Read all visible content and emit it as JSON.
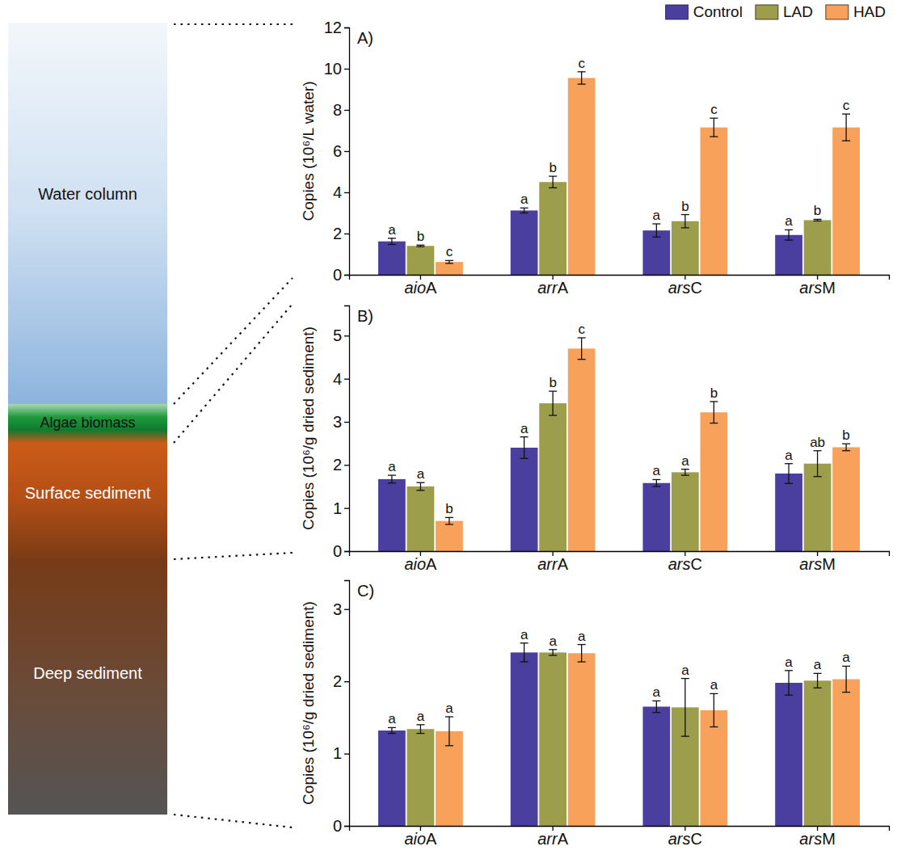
{
  "diagram": {
    "layers": [
      "Water column",
      "Algae biomass",
      "Surface sediment",
      "Deep sediment"
    ]
  },
  "chart_data": [
    {
      "type": "bar",
      "label": "A)",
      "y_label": "Copies (10⁶/L water)",
      "legend": "top",
      "categories": [
        "aioA",
        "arrA",
        "arsC",
        "arsM"
      ],
      "ylim": [
        0,
        12
      ],
      "yticks": [
        0,
        2,
        4,
        6,
        8,
        10,
        12
      ],
      "series": [
        {
          "name": "Control",
          "color": "#4a3f9f",
          "values": [
            1.62,
            3.12,
            2.15,
            1.93
          ],
          "errors": [
            0.15,
            0.12,
            0.32,
            0.25
          ],
          "letters": [
            "a",
            "a",
            "a",
            "a"
          ]
        },
        {
          "name": "LAD",
          "color": "#9c9e4b",
          "values": [
            1.4,
            4.5,
            2.6,
            2.65
          ],
          "errors": [
            0.04,
            0.28,
            0.32,
            0.04
          ],
          "letters": [
            "b",
            "b",
            "b",
            "b"
          ]
        },
        {
          "name": "HAD",
          "color": "#f8a15a",
          "values": [
            0.62,
            9.55,
            7.15,
            7.15
          ],
          "errors": [
            0.07,
            0.3,
            0.45,
            0.65
          ],
          "letters": [
            "c",
            "c",
            "c",
            "c"
          ]
        }
      ]
    },
    {
      "type": "bar",
      "label": "B)",
      "y_label": "Copies (10⁶/g dried sediment)",
      "categories": [
        "aioA",
        "arrA",
        "arsC",
        "arsM"
      ],
      "ylim": [
        0,
        5.7
      ],
      "yticks": [
        0,
        1,
        2,
        3,
        4,
        5
      ],
      "series": [
        {
          "color": "#4a3f9f",
          "values": [
            1.67,
            2.4,
            1.58,
            1.8
          ],
          "errors": [
            0.09,
            0.25,
            0.08,
            0.23
          ],
          "letters": [
            "a",
            "a",
            "a",
            "a"
          ]
        },
        {
          "color": "#9c9e4b",
          "values": [
            1.5,
            3.43,
            1.83,
            2.03
          ],
          "errors": [
            0.09,
            0.28,
            0.07,
            0.3
          ],
          "letters": [
            "a",
            "b",
            "a",
            "ab"
          ]
        },
        {
          "color": "#f8a15a",
          "values": [
            0.7,
            4.7,
            3.22,
            2.41
          ],
          "errors": [
            0.08,
            0.25,
            0.25,
            0.08
          ],
          "letters": [
            "b",
            "c",
            "b",
            "b"
          ]
        }
      ]
    },
    {
      "type": "bar",
      "label": "C)",
      "y_label": "Copies (10⁶/g dried sediment)",
      "categories": [
        "aioA",
        "arrA",
        "arsC",
        "arsM"
      ],
      "ylim": [
        0,
        3.4
      ],
      "yticks": [
        0,
        1,
        2,
        3
      ],
      "series": [
        {
          "color": "#4a3f9f",
          "values": [
            1.32,
            2.4,
            1.65,
            1.98
          ],
          "errors": [
            0.04,
            0.13,
            0.08,
            0.17
          ],
          "letters": [
            "a",
            "a",
            "a",
            "a"
          ]
        },
        {
          "color": "#9c9e4b",
          "values": [
            1.34,
            2.4,
            1.64,
            2.01
          ],
          "errors": [
            0.06,
            0.04,
            0.4,
            0.1
          ],
          "letters": [
            "a",
            "a",
            "a",
            "a"
          ]
        },
        {
          "color": "#f8a15a",
          "values": [
            1.31,
            2.39,
            1.6,
            2.03
          ],
          "errors": [
            0.2,
            0.12,
            0.23,
            0.18
          ],
          "letters": [
            "a",
            "a",
            "a",
            "a"
          ]
        }
      ]
    }
  ]
}
